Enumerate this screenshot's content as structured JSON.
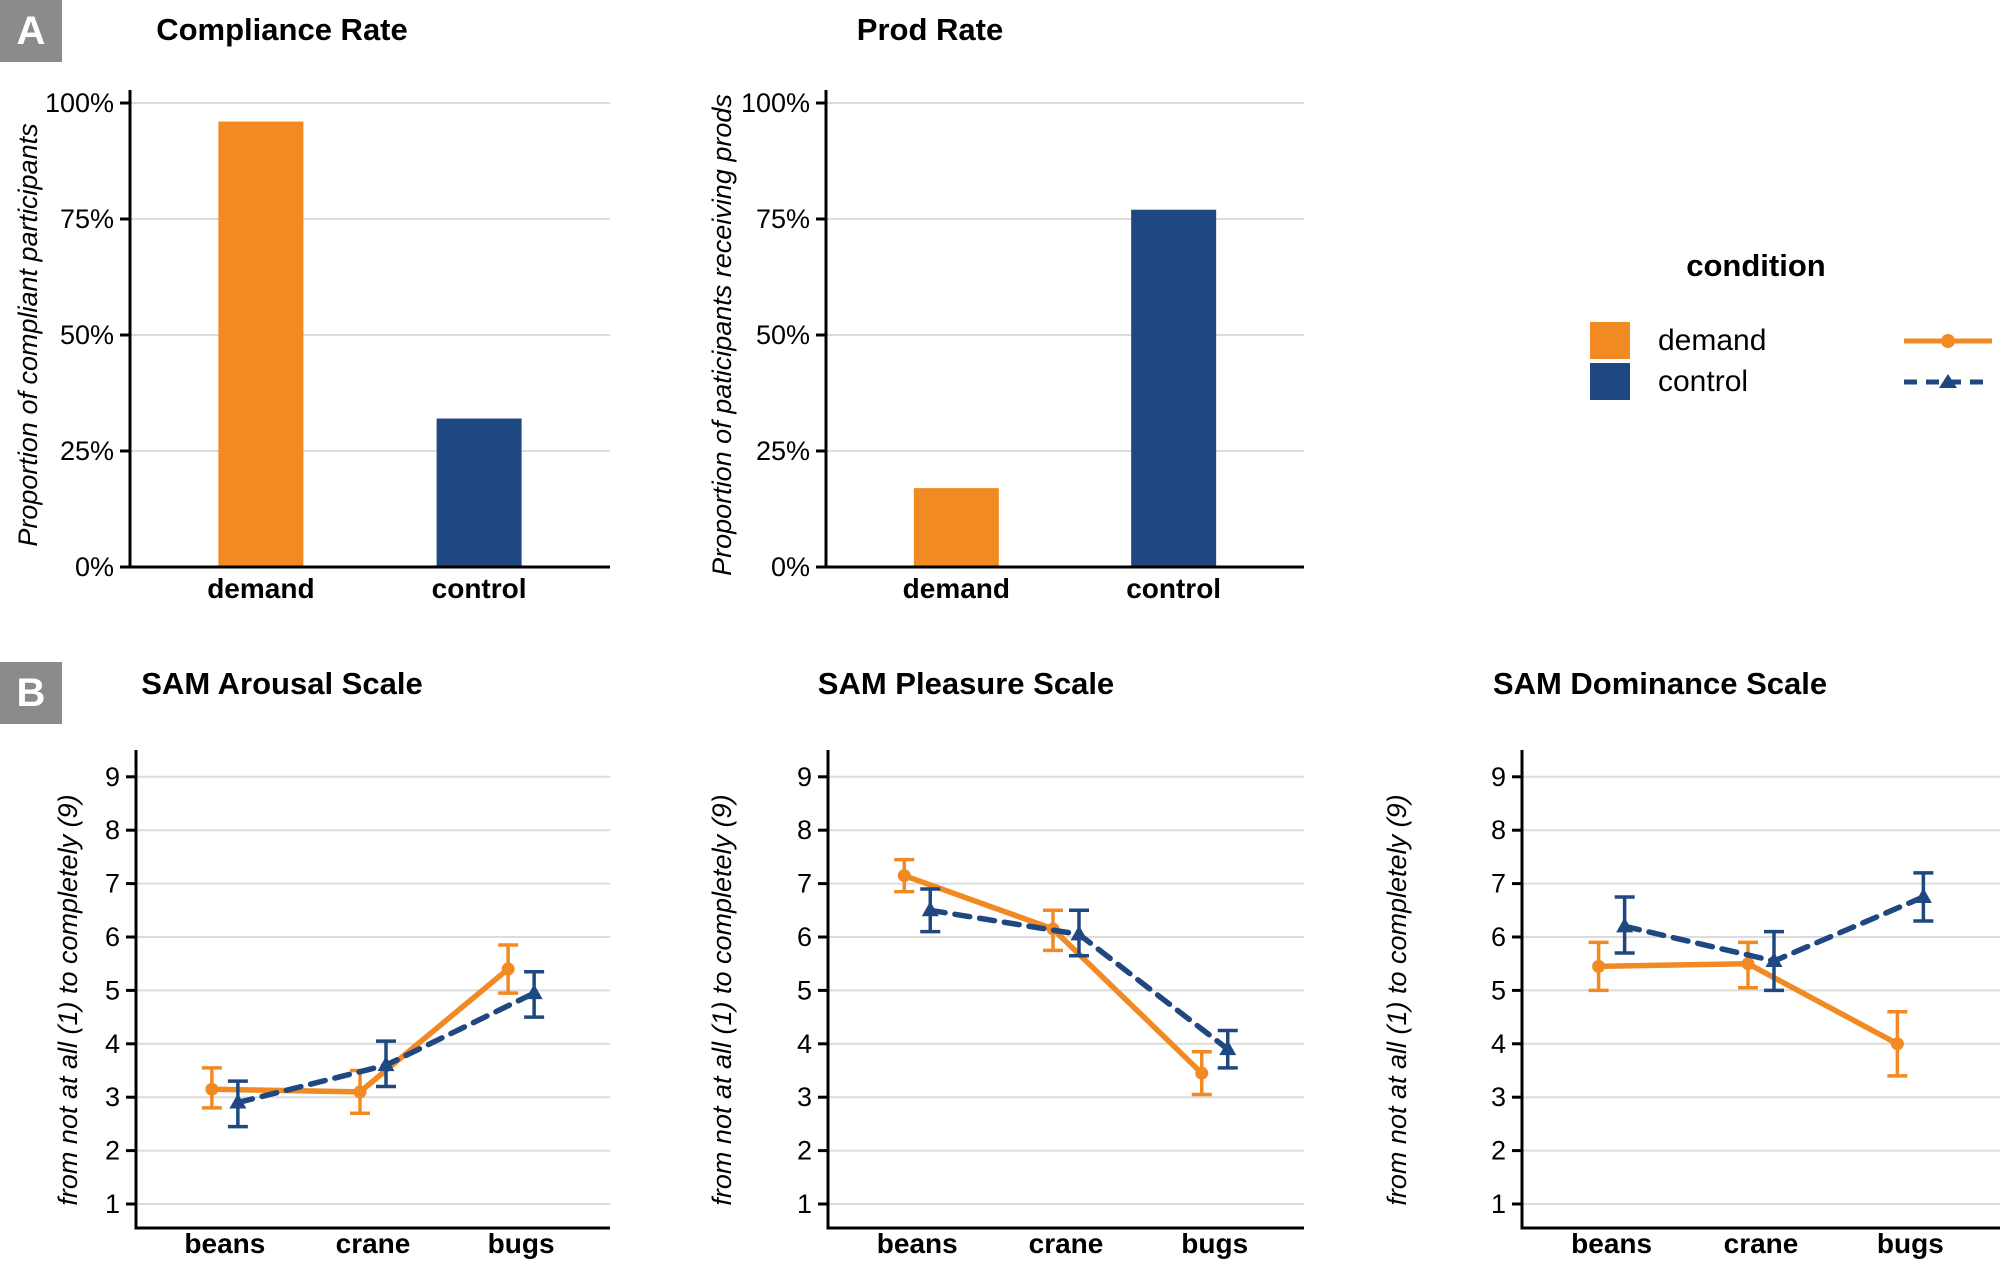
{
  "panels": {
    "a": {
      "label": "A"
    },
    "b": {
      "label": "B"
    }
  },
  "colors": {
    "demand": "#F28A24",
    "control": "#1F4880",
    "grid": "#DCDCDC",
    "axis": "#000000",
    "panel_label_bg": "#8B8B8D"
  },
  "legend": {
    "title": "condition",
    "entries": [
      {
        "label": "demand",
        "color_key": "demand",
        "line_style": "solid",
        "marker": "circle"
      },
      {
        "label": "control",
        "color_key": "control",
        "line_style": "dashed",
        "marker": "triangle"
      }
    ]
  },
  "chart_data": [
    {
      "id": "compliance",
      "type": "bar",
      "title": "Compliance Rate",
      "ylabel": "Proportion of compliant participants",
      "categories": [
        "demand",
        "control"
      ],
      "values": [
        96,
        32
      ],
      "ylim": [
        0,
        100
      ],
      "grid": true,
      "y_ticks": [
        {
          "v": 0,
          "label": "0%"
        },
        {
          "v": 25,
          "label": "25%"
        },
        {
          "v": 50,
          "label": "50%"
        },
        {
          "v": 75,
          "label": "75%"
        },
        {
          "v": 100,
          "label": "100%"
        }
      ]
    },
    {
      "id": "prod",
      "type": "bar",
      "title": "Prod Rate",
      "ylabel": "Proportion of paticipants receiving prods",
      "categories": [
        "demand",
        "control"
      ],
      "values": [
        17,
        77
      ],
      "ylim": [
        0,
        100
      ],
      "grid": true,
      "y_ticks": [
        {
          "v": 0,
          "label": "0%"
        },
        {
          "v": 25,
          "label": "25%"
        },
        {
          "v": 50,
          "label": "50%"
        },
        {
          "v": 75,
          "label": "75%"
        },
        {
          "v": 100,
          "label": "100%"
        }
      ]
    },
    {
      "id": "arousal",
      "type": "line",
      "title": "SAM Arousal Scale",
      "ylabel": "from not at all (1) to completely (9)",
      "categories": [
        "beans",
        "crane",
        "bugs"
      ],
      "ylim": [
        1,
        9
      ],
      "grid": true,
      "y_ticks": [
        {
          "v": 1,
          "label": "1"
        },
        {
          "v": 2,
          "label": "2"
        },
        {
          "v": 3,
          "label": "3"
        },
        {
          "v": 4,
          "label": "4"
        },
        {
          "v": 5,
          "label": "5"
        },
        {
          "v": 6,
          "label": "6"
        },
        {
          "v": 7,
          "label": "7"
        },
        {
          "v": 8,
          "label": "8"
        },
        {
          "v": 9,
          "label": "9"
        }
      ],
      "series": [
        {
          "name": "demand",
          "values": [
            3.15,
            3.1,
            5.4
          ],
          "err_low": [
            2.8,
            2.7,
            4.95
          ],
          "err_high": [
            3.55,
            3.5,
            5.85
          ]
        },
        {
          "name": "control",
          "values": [
            2.9,
            3.6,
            4.95
          ],
          "err_low": [
            2.45,
            3.2,
            4.5
          ],
          "err_high": [
            3.3,
            4.05,
            5.35
          ]
        }
      ]
    },
    {
      "id": "pleasure",
      "type": "line",
      "title": "SAM Pleasure Scale",
      "ylabel": "from not at all (1) to completely (9)",
      "categories": [
        "beans",
        "crane",
        "bugs"
      ],
      "ylim": [
        1,
        9
      ],
      "grid": true,
      "y_ticks": [
        {
          "v": 1,
          "label": "1"
        },
        {
          "v": 2,
          "label": "2"
        },
        {
          "v": 3,
          "label": "3"
        },
        {
          "v": 4,
          "label": "4"
        },
        {
          "v": 5,
          "label": "5"
        },
        {
          "v": 6,
          "label": "6"
        },
        {
          "v": 7,
          "label": "7"
        },
        {
          "v": 8,
          "label": "8"
        },
        {
          "v": 9,
          "label": "9"
        }
      ],
      "series": [
        {
          "name": "demand",
          "values": [
            7.15,
            6.15,
            3.45
          ],
          "err_low": [
            6.85,
            5.75,
            3.05
          ],
          "err_high": [
            7.45,
            6.5,
            3.85
          ]
        },
        {
          "name": "control",
          "values": [
            6.5,
            6.05,
            3.9
          ],
          "err_low": [
            6.1,
            5.65,
            3.55
          ],
          "err_high": [
            6.9,
            6.5,
            4.25
          ]
        }
      ]
    },
    {
      "id": "dominance",
      "type": "line",
      "title": "SAM Dominance Scale",
      "ylabel": "from not at all (1) to completely (9)",
      "categories": [
        "beans",
        "crane",
        "bugs"
      ],
      "ylim": [
        1,
        9
      ],
      "grid": true,
      "y_ticks": [
        {
          "v": 1,
          "label": "1"
        },
        {
          "v": 2,
          "label": "2"
        },
        {
          "v": 3,
          "label": "3"
        },
        {
          "v": 4,
          "label": "4"
        },
        {
          "v": 5,
          "label": "5"
        },
        {
          "v": 6,
          "label": "6"
        },
        {
          "v": 7,
          "label": "7"
        },
        {
          "v": 8,
          "label": "8"
        },
        {
          "v": 9,
          "label": "9"
        }
      ],
      "series": [
        {
          "name": "demand",
          "values": [
            5.45,
            5.5,
            4.0
          ],
          "err_low": [
            5.0,
            5.05,
            3.4
          ],
          "err_high": [
            5.9,
            5.9,
            4.6
          ]
        },
        {
          "name": "control",
          "values": [
            6.2,
            5.55,
            6.75
          ],
          "err_low": [
            5.7,
            5.0,
            6.3
          ],
          "err_high": [
            6.75,
            6.1,
            7.2
          ]
        }
      ]
    }
  ]
}
